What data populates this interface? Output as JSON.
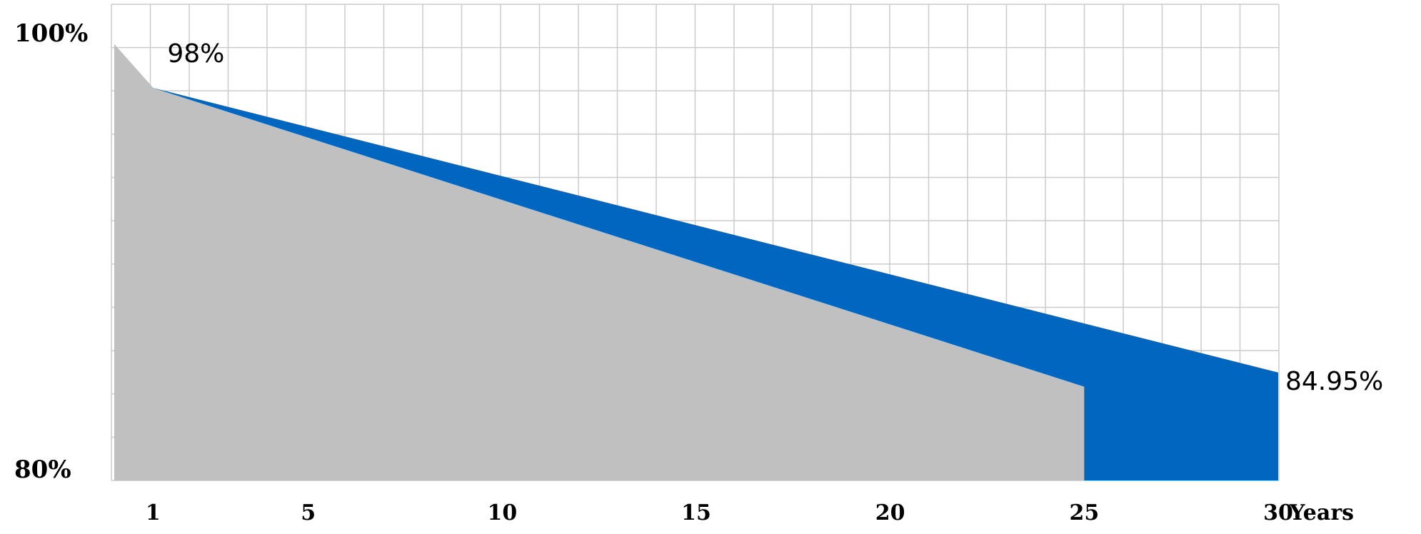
{
  "chart_data": {
    "type": "area",
    "x_unit_label": "Years",
    "xlim": [
      0,
      30
    ],
    "ylim": [
      80,
      100
    ],
    "grid": true,
    "y_tick_labels": [
      {
        "value": 100,
        "text": "100%"
      },
      {
        "value": 80,
        "text": "80%"
      }
    ],
    "x_ticks": [
      {
        "value": 1,
        "text": "1"
      },
      {
        "value": 5,
        "text": "5"
      },
      {
        "value": 10,
        "text": "10"
      },
      {
        "value": 15,
        "text": "15"
      },
      {
        "value": 20,
        "text": "20"
      },
      {
        "value": 25,
        "text": "25"
      },
      {
        "value": 30,
        "text": "30"
      }
    ],
    "series": [
      {
        "color": "#0066bf",
        "points": [
          {
            "x": 0,
            "y": 100
          },
          {
            "x": 1,
            "y": 98
          },
          {
            "x": 30,
            "y": 84.95
          }
        ]
      },
      {
        "color": "#c0c0c0",
        "points": [
          {
            "x": 0,
            "y": 100
          },
          {
            "x": 1,
            "y": 98
          },
          {
            "x": 25,
            "y": 84.3
          }
        ]
      }
    ],
    "annotations": [
      {
        "x": 1,
        "y": 98,
        "text": "98%"
      },
      {
        "x": 30,
        "y": 84.95,
        "text": "84.95%"
      }
    ],
    "grid_color": "#cccccc"
  }
}
